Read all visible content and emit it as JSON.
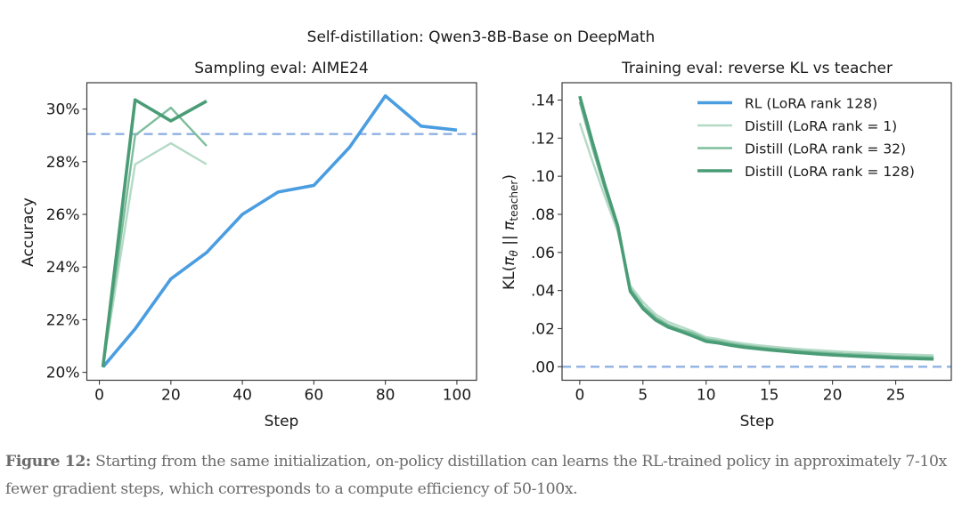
{
  "figure_title": "Self-distillation: Qwen3-8B-Base on DeepMath",
  "caption": {
    "label": "Figure 12:",
    "text": " Starting from the same initialization, on-policy distillation can learns the RL-trained policy in approximately 7-10x fewer gradient steps, which corresponds to a compute efficiency of 50-100x."
  },
  "colors": {
    "rl": "#4a9de0",
    "distill_rank_1": "#b4dac6",
    "distill_rank_32": "#7dbd9c",
    "distill_rank_128": "#4a9c76",
    "reference": "#8fb0e3"
  },
  "chart_data": [
    {
      "type": "line",
      "title": "Sampling eval: AIME24",
      "xlabel": "Step",
      "ylabel": "Accuracy",
      "xlim": [
        -3.5,
        105.5
      ],
      "ylim": [
        19.7,
        31.0
      ],
      "xticks": [
        0,
        20,
        40,
        60,
        80,
        100
      ],
      "xtick_labels": [
        "0",
        "20",
        "40",
        "60",
        "80",
        "100"
      ],
      "yticks": [
        20,
        22,
        24,
        26,
        28,
        30
      ],
      "ytick_labels": [
        "20%",
        "22%",
        "24%",
        "26%",
        "28%",
        "30%"
      ],
      "reference_line": {
        "y": 29.05,
        "style": "dashed"
      },
      "grid": false,
      "series": [
        {
          "name": "RL (LoRA rank 128)",
          "key": "rl",
          "x": [
            1,
            10,
            20,
            30,
            40,
            50,
            60,
            70,
            80,
            90,
            100
          ],
          "values": [
            20.2,
            21.65,
            23.55,
            24.55,
            26.0,
            26.85,
            27.1,
            28.55,
            30.5,
            29.35,
            29.2
          ]
        },
        {
          "name": "Distill (LoRA rank = 1)",
          "key": "distill_rank_1",
          "x": [
            1,
            10,
            20,
            30
          ],
          "values": [
            20.2,
            27.9,
            28.7,
            27.9
          ]
        },
        {
          "name": "Distill (LoRA rank = 32)",
          "key": "distill_rank_32",
          "x": [
            1,
            10,
            20,
            30
          ],
          "values": [
            20.2,
            29.0,
            30.05,
            28.6
          ]
        },
        {
          "name": "Distill (LoRA rank = 128)",
          "key": "distill_rank_128",
          "x": [
            1,
            10,
            20,
            30
          ],
          "values": [
            20.2,
            30.35,
            29.55,
            30.3
          ]
        }
      ]
    },
    {
      "type": "line",
      "title": "Training eval: reverse KL vs teacher",
      "xlabel": "Step",
      "ylabel_parts": {
        "pre": "KL(",
        "pi1": "π",
        "sub1": "θ",
        "mid": " || ",
        "pi2": "π",
        "sub2": "teacher",
        "post": ")"
      },
      "xlim": [
        -1.4,
        29.4
      ],
      "ylim": [
        -0.0071,
        0.1491
      ],
      "xticks": [
        0,
        5,
        10,
        15,
        20,
        25
      ],
      "xtick_labels": [
        "0",
        "5",
        "10",
        "15",
        "20",
        "25"
      ],
      "yticks": [
        0.0,
        0.02,
        0.04,
        0.06,
        0.08,
        0.1,
        0.12,
        0.14
      ],
      "ytick_labels": [
        ".00",
        ".02",
        ".04",
        ".06",
        ".08",
        ".10",
        ".12",
        ".14"
      ],
      "reference_line": {
        "y": 0.0,
        "style": "dashed"
      },
      "grid": false,
      "legend": {
        "placement": "top-right",
        "entries": [
          {
            "label": "RL (LoRA rank 128)",
            "key": "rl"
          },
          {
            "label": "Distill (LoRA rank = 1)",
            "key": "distill_rank_1"
          },
          {
            "label": "Distill (LoRA rank = 32)",
            "key": "distill_rank_32"
          },
          {
            "label": "Distill (LoRA rank = 128)",
            "key": "distill_rank_128"
          }
        ]
      },
      "series": [
        {
          "name": "Distill (LoRA rank = 1)",
          "key": "distill_rank_1",
          "x": [
            0,
            1,
            2,
            3,
            4,
            5,
            6,
            7,
            8,
            9,
            10,
            11,
            12,
            13,
            14,
            15,
            16,
            17,
            18,
            19,
            20,
            21,
            22,
            23,
            24,
            25,
            26,
            27,
            28
          ],
          "values": [
            0.128,
            0.108,
            0.089,
            0.071,
            0.0425,
            0.034,
            0.0275,
            0.0235,
            0.021,
            0.0185,
            0.0155,
            0.0145,
            0.0132,
            0.0122,
            0.0114,
            0.0107,
            0.0101,
            0.0095,
            0.009,
            0.0086,
            0.0082,
            0.0078,
            0.0075,
            0.0072,
            0.0069,
            0.0066,
            0.0064,
            0.0062,
            0.006
          ]
        },
        {
          "name": "Distill (LoRA rank = 32)",
          "key": "distill_rank_32",
          "x": [
            0,
            1,
            2,
            3,
            4,
            5,
            6,
            7,
            8,
            9,
            10,
            11,
            12,
            13,
            14,
            15,
            16,
            17,
            18,
            19,
            20,
            21,
            22,
            23,
            24,
            25,
            26,
            27,
            28
          ],
          "values": [
            0.139,
            0.115,
            0.093,
            0.073,
            0.041,
            0.032,
            0.026,
            0.022,
            0.0195,
            0.0175,
            0.0145,
            0.0135,
            0.0122,
            0.0112,
            0.0104,
            0.0097,
            0.0091,
            0.0085,
            0.008,
            0.0075,
            0.0071,
            0.0067,
            0.0064,
            0.0061,
            0.0058,
            0.0055,
            0.0053,
            0.0051,
            0.0049
          ]
        },
        {
          "name": "Distill (LoRA rank = 128)",
          "key": "distill_rank_128",
          "x": [
            0,
            1,
            2,
            3,
            4,
            5,
            6,
            7,
            8,
            9,
            10,
            11,
            12,
            13,
            14,
            15,
            16,
            17,
            18,
            19,
            20,
            21,
            22,
            23,
            24,
            25,
            26,
            27,
            28
          ],
          "values": [
            0.142,
            0.118,
            0.095,
            0.074,
            0.0395,
            0.0305,
            0.0245,
            0.0208,
            0.0185,
            0.016,
            0.0133,
            0.0124,
            0.0112,
            0.0102,
            0.0095,
            0.0088,
            0.0082,
            0.0076,
            0.0071,
            0.0066,
            0.0062,
            0.0058,
            0.0055,
            0.0052,
            0.0049,
            0.0046,
            0.0044,
            0.0042,
            0.004
          ]
        }
      ]
    }
  ]
}
